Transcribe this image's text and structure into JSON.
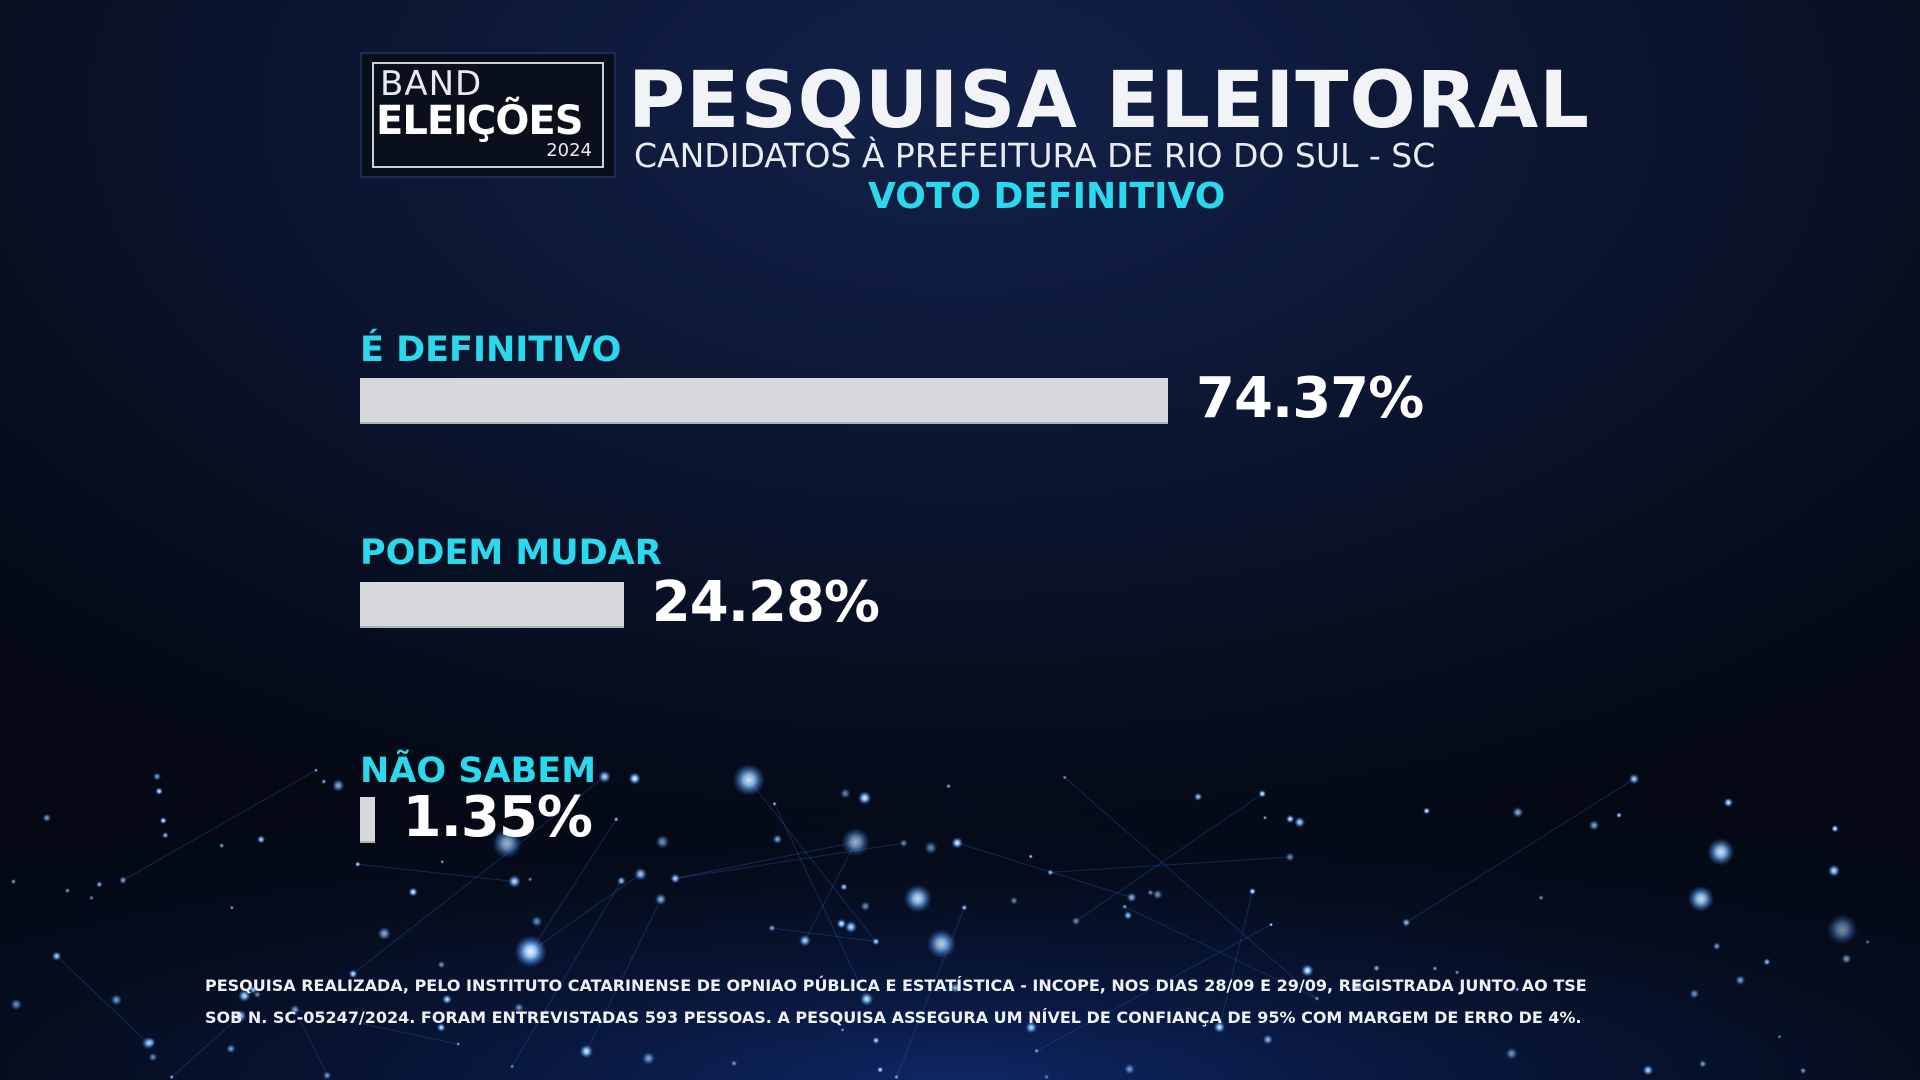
{
  "logo": {
    "line1": "BAND",
    "line2": "ELEIÇÕES",
    "year": "2024"
  },
  "header": {
    "title": "PESQUISA ELEITORAL",
    "subtitle": "CANDIDATOS À PREFEITURA DE RIO DO SUL - SC",
    "subtitle2": "VOTO DEFINITIVO"
  },
  "colors": {
    "label": "#2ad9ec",
    "bar": "#d6d8dc",
    "background": "#050b1c"
  },
  "chart_data": {
    "type": "bar",
    "orientation": "horizontal",
    "categories": [
      "É DEFINITIVO",
      "PODEM MUDAR",
      "NÃO SABEM"
    ],
    "values": [
      74.37,
      24.28,
      1.35
    ],
    "value_labels": [
      "74.37%",
      "24.28%",
      "1.35%"
    ],
    "unit": "%",
    "xlim": [
      0,
      74.37
    ],
    "grid": false
  },
  "footnote": {
    "line1": "PESQUISA REALIZADA, PELO INSTITUTO CATARINENSE DE OPNIAO PÚBLICA E ESTATÍSTICA - INCOPE, NOS DIAS 28/09 E 29/09, REGISTRADA JUNTO AO TSE",
    "line2": "SOB N. SC-05247/2024. FORAM ENTREVISTADAS 593 PESSOAS. A PESQUISA ASSEGURA UM NÍVEL DE CONFIANÇA DE 95% COM MARGEM DE ERRO DE 4%."
  }
}
